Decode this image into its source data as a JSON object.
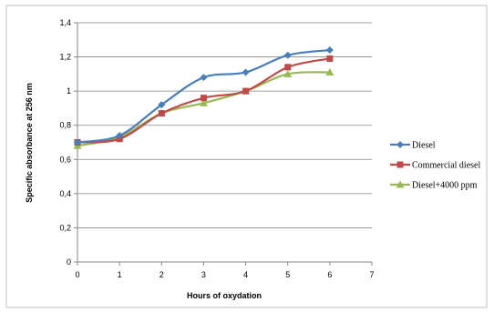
{
  "chart_data": {
    "type": "line",
    "title": "",
    "xlabel": "Hours of oxydation",
    "ylabel": "Specific absorbance at 256 nm",
    "xlim": [
      0,
      7
    ],
    "ylim": [
      0,
      1.4
    ],
    "x_ticks": [
      "0",
      "1",
      "2",
      "3",
      "4",
      "5",
      "6",
      "7"
    ],
    "y_ticks": [
      "0",
      "0,2",
      "0,4",
      "0,6",
      "0,8",
      "1",
      "1,2",
      "1,4"
    ],
    "grid": "horizontal",
    "legend_position": "right",
    "x": [
      0,
      1,
      2,
      3,
      4,
      5,
      6
    ],
    "series": [
      {
        "name": "Diesel",
        "color": "#4a7ebb",
        "marker": "diamond",
        "values": [
          0.7,
          0.74,
          0.92,
          1.08,
          1.11,
          1.21,
          1.24
        ]
      },
      {
        "name": "Commercial diesel",
        "color": "#be4b48",
        "marker": "square",
        "values": [
          0.7,
          0.72,
          0.87,
          0.96,
          1.0,
          1.14,
          1.19
        ]
      },
      {
        "name": "Diesel+4000 ppm",
        "color": "#98b954",
        "marker": "triangle",
        "values": [
          0.68,
          0.73,
          0.87,
          0.93,
          1.0,
          1.1,
          1.11
        ]
      }
    ]
  }
}
